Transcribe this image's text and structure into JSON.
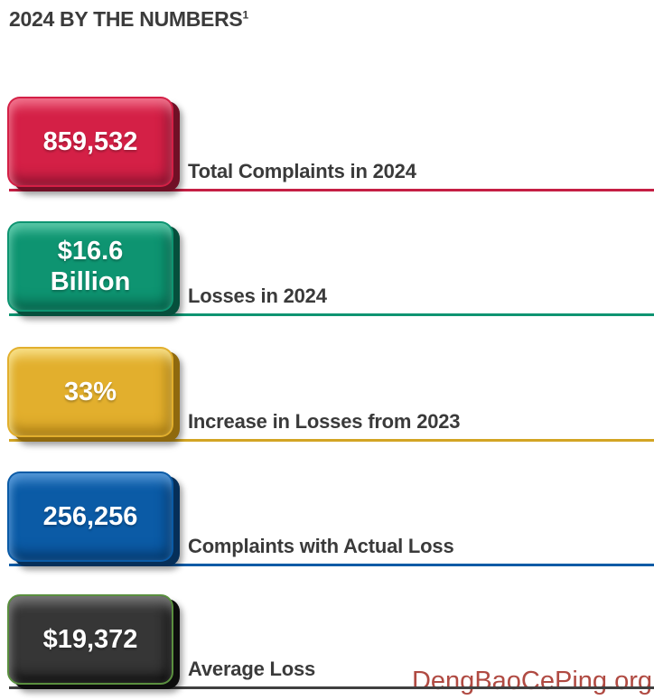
{
  "header": {
    "title": "2024 BY THE NUMBERS",
    "footnote_marker": "1"
  },
  "stats": [
    {
      "value": "859,532",
      "label": "Total Complaints in 2024",
      "colors": {
        "face": "#d42046",
        "light": "#f2738d",
        "dark": "#8c1430",
        "edge": "#701026",
        "line": "#c51f44"
      }
    },
    {
      "value": "$16.6\nBillion",
      "label": "Losses in 2024",
      "colors": {
        "face": "#0e9471",
        "light": "#5cc9a9",
        "dark": "#07614a",
        "edge": "#064f3c",
        "line": "#0e9471"
      }
    },
    {
      "value": "33%",
      "label": "Increase in Losses from 2023",
      "colors": {
        "face": "#e2af2d",
        "light": "#f8e088",
        "dark": "#a87c14",
        "edge": "#8f690e",
        "line": "#d3a524"
      }
    },
    {
      "value": "256,256",
      "label": "Complaints with Actual Loss",
      "colors": {
        "face": "#0b5ba6",
        "light": "#5598d8",
        "dark": "#063a6e",
        "edge": "#062f59",
        "line": "#0b5ba6"
      }
    },
    {
      "value": "$19,372",
      "label": "Average Loss",
      "colors": {
        "face": "#363636",
        "light": "#787878",
        "dark": "#101010",
        "edge": "#0d0d0d",
        "line": "#404040",
        "rim": "#5a8f3f"
      }
    }
  ],
  "watermark": {
    "text": "DengBaoCePing.org",
    "color": "#b04a42"
  },
  "chart_data": {
    "type": "table",
    "title": "2024 BY THE NUMBERS",
    "columns": [
      "value",
      "label"
    ],
    "rows": [
      {
        "value": "859,532",
        "label": "Total Complaints in 2024"
      },
      {
        "value": "$16.6 Billion",
        "label": "Losses in 2024"
      },
      {
        "value": "33%",
        "label": "Increase in Losses from 2023"
      },
      {
        "value": "256,256",
        "label": "Complaints with Actual Loss"
      },
      {
        "value": "$19,372",
        "label": "Average Loss"
      }
    ],
    "layout": {
      "badge_colors": [
        "#d42046",
        "#0e9471",
        "#e2af2d",
        "#0b5ba6",
        "#363636"
      ],
      "orientation": "vertical-list"
    }
  }
}
